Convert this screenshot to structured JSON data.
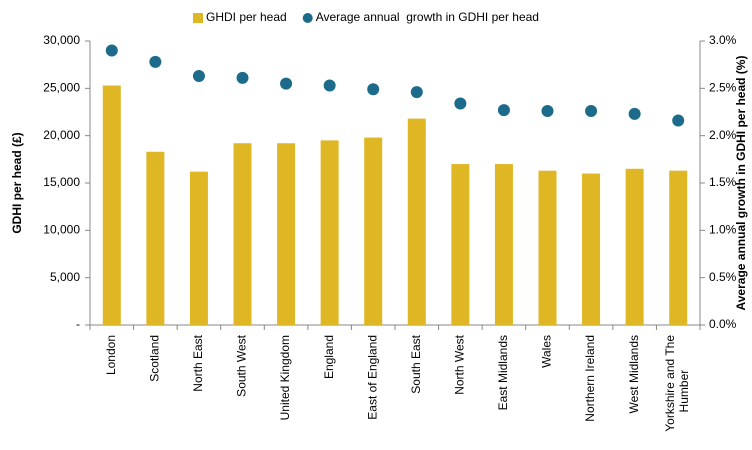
{
  "chart_data": {
    "type": "bar_dot",
    "y_label": "GDHI per head (£)",
    "y2_label": "Average annual growth in GDHI per head (%)",
    "categories": [
      "London",
      "Scotland",
      "North East",
      "South West",
      "United Kingdom",
      "England",
      "East of England",
      "South East",
      "North West",
      "East Midlands",
      "Wales",
      "Northern Ireland",
      "West Midlands",
      "Yorkshire and The Humber"
    ],
    "series": [
      {
        "name": "GHDI per head",
        "color": "#dfb624",
        "values": [
          25300,
          18300,
          16200,
          19200,
          19200,
          19500,
          19800,
          21800,
          17000,
          17000,
          16300,
          16000,
          16500,
          16300
        ]
      },
      {
        "name": "Average annual  growth in GDHI per head",
        "color": "#1d6b8a",
        "axis": "y2",
        "values": [
          2.9,
          2.78,
          2.63,
          2.61,
          2.55,
          2.53,
          2.49,
          2.46,
          2.34,
          2.27,
          2.26,
          2.26,
          2.23,
          2.16
        ]
      }
    ],
    "ylim": [
      0,
      30000
    ],
    "yticks": [
      {
        "value": 0,
        "label": "-"
      },
      {
        "value": 5000,
        "label": "5,000"
      },
      {
        "value": 10000,
        "label": "10,000"
      },
      {
        "value": 15000,
        "label": "15,000"
      },
      {
        "value": 20000,
        "label": "20,000"
      },
      {
        "value": 25000,
        "label": "25,000"
      },
      {
        "value": 30000,
        "label": "30,000"
      }
    ],
    "y2lim": [
      0,
      3
    ],
    "y2ticks": [
      {
        "value": 0,
        "label": "0.0%"
      },
      {
        "value": 0.5,
        "label": "0.5%"
      },
      {
        "value": 1,
        "label": "1.0%"
      },
      {
        "value": 1.5,
        "label": "1.5%"
      },
      {
        "value": 2,
        "label": "2.0%"
      },
      {
        "value": 2.5,
        "label": "2.5%"
      },
      {
        "value": 3,
        "label": "3.0%"
      }
    ],
    "legend": "top"
  }
}
